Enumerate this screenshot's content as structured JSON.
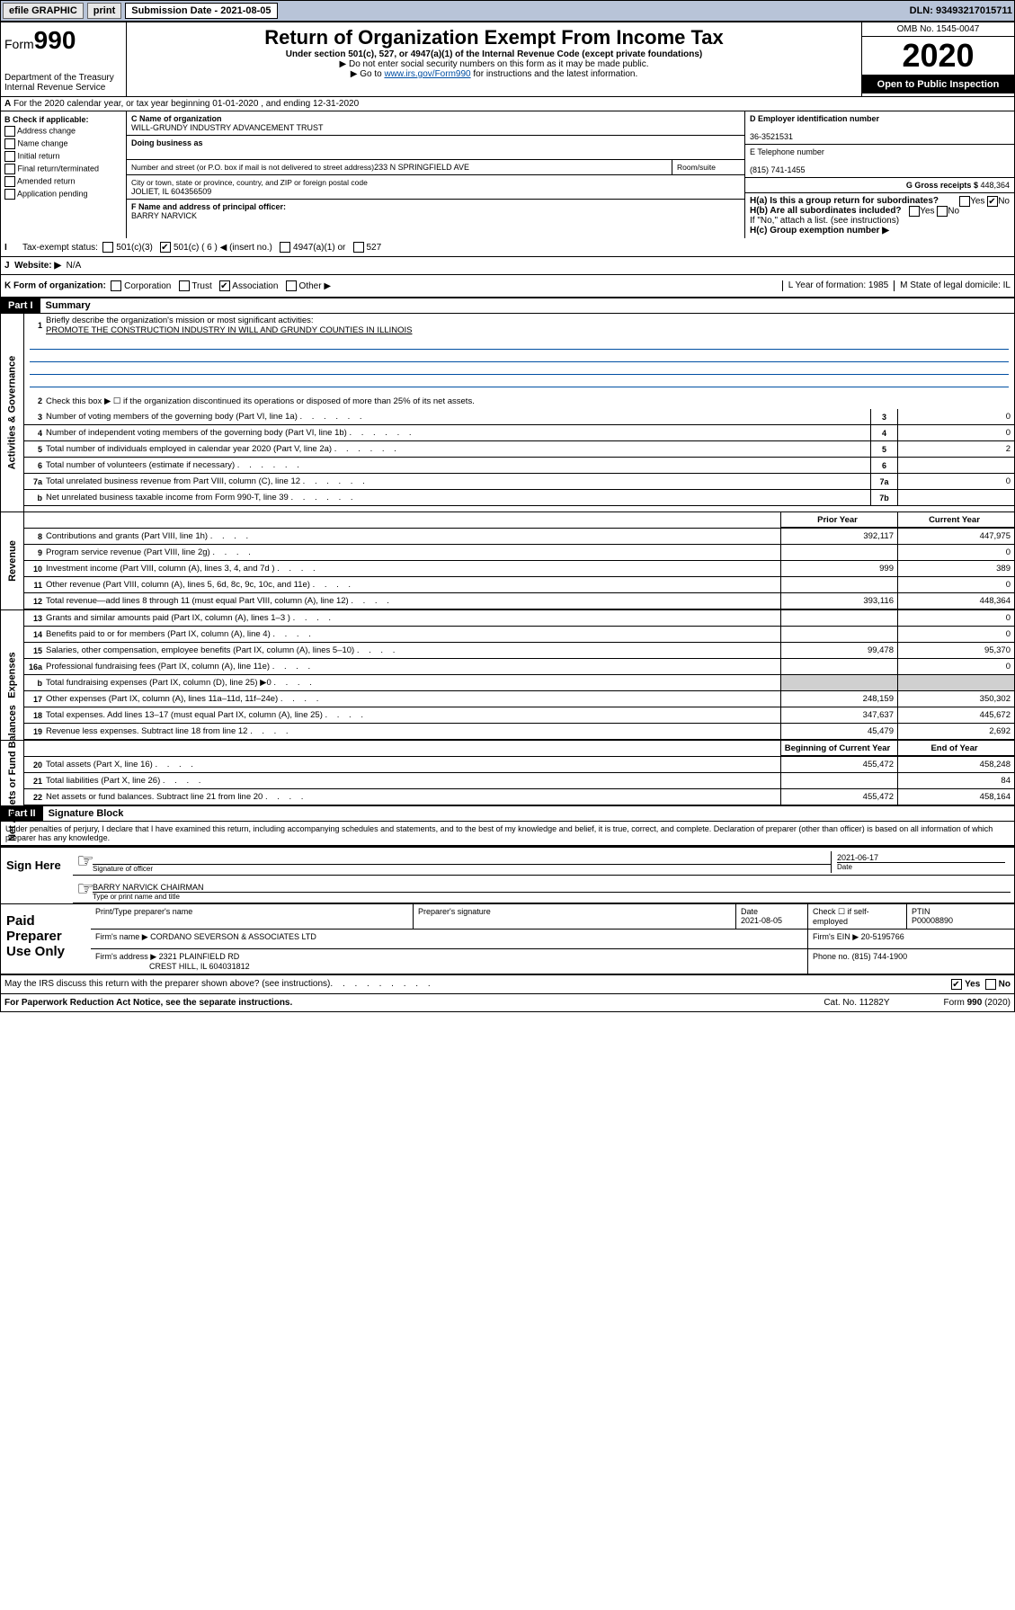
{
  "topbar": {
    "efile": "efile GRAPHIC",
    "print": "print",
    "subdate_label": "Submission Date - 2021-08-05",
    "dln": "DLN: 93493217015711"
  },
  "header": {
    "form_prefix": "Form",
    "form_num": "990",
    "dept": "Department of the Treasury",
    "irs": "Internal Revenue Service",
    "title": "Return of Organization Exempt From Income Tax",
    "sub1": "Under section 501(c), 527, or 4947(a)(1) of the Internal Revenue Code (except private foundations)",
    "sub2": "▶ Do not enter social security numbers on this form as it may be made public.",
    "sub3_pre": "▶ Go to ",
    "sub3_link": "www.irs.gov/Form990",
    "sub3_post": " for instructions and the latest information.",
    "omb": "OMB No. 1545-0047",
    "year": "2020",
    "badge": "Open to Public Inspection"
  },
  "sectionA": "For the 2020 calendar year, or tax year beginning 01-01-2020    , and ending 12-31-2020",
  "boxB": {
    "title": "B Check if applicable:",
    "items": [
      "Address change",
      "Name change",
      "Initial return",
      "Final return/terminated",
      "Amended return",
      "Application pending"
    ]
  },
  "boxC": {
    "name_lbl": "C Name of organization",
    "name": "WILL-GRUNDY INDUSTRY ADVANCEMENT TRUST",
    "dba_lbl": "Doing business as",
    "addr_lbl": "Number and street (or P.O. box if mail is not delivered to street address)",
    "room_lbl": "Room/suite",
    "addr": "233 N SPRINGFIELD AVE",
    "city_lbl": "City or town, state or province, country, and ZIP or foreign postal code",
    "city": "JOLIET, IL  604356509",
    "officer_lbl": "F  Name and address of principal officer:",
    "officer": "BARRY NARVICK"
  },
  "boxD": {
    "lbl": "D Employer identification number",
    "val": "36-3521531"
  },
  "boxE": {
    "lbl": "E Telephone number",
    "val": "(815) 741-1455"
  },
  "boxG": {
    "lbl": "G Gross receipts $ ",
    "val": "448,364"
  },
  "boxH": {
    "a": "H(a)  Is this a group return for subordinates?",
    "b": "H(b)  Are all subordinates included?",
    "note": "If \"No,\" attach a list. (see instructions)",
    "c": "H(c)  Group exemption number ▶",
    "yes": "Yes",
    "no": "No"
  },
  "boxI": {
    "lbl": "Tax-exempt status:",
    "opts": [
      "501(c)(3)",
      "501(c) ( 6 ) ◀ (insert no.)",
      "4947(a)(1) or",
      "527"
    ]
  },
  "boxJ": {
    "lbl": "Website: ▶",
    "val": "N/A"
  },
  "boxK": {
    "lbl": "K Form of organization:",
    "opts": [
      "Corporation",
      "Trust",
      "Association",
      "Other ▶"
    ],
    "l": "L Year of formation: 1985",
    "m": "M State of legal domicile: IL"
  },
  "part1": {
    "hdr": "Part I",
    "title": "Summary",
    "q1_lbl": "Briefly describe the organization's mission or most significant activities:",
    "q1_val": "PROMOTE THE CONSTRUCTION INDUSTRY IN WILL AND GRUNDY COUNTIES IN ILLINOIS",
    "q2": "Check this box ▶ ☐  if the organization discontinued its operations or disposed of more than 25% of its net assets.",
    "sidebar_gov": "Activities & Governance",
    "sidebar_rev": "Revenue",
    "sidebar_exp": "Expenses",
    "sidebar_net": "Net Assets or Fund Balances",
    "col_prior": "Prior Year",
    "col_curr": "Current Year",
    "col_beg": "Beginning of Current Year",
    "col_end": "End of Year",
    "rows_gov": [
      {
        "n": "3",
        "t": "Number of voting members of the governing body (Part VI, line 1a)",
        "rn": "3",
        "v": "0"
      },
      {
        "n": "4",
        "t": "Number of independent voting members of the governing body (Part VI, line 1b)",
        "rn": "4",
        "v": "0"
      },
      {
        "n": "5",
        "t": "Total number of individuals employed in calendar year 2020 (Part V, line 2a)",
        "rn": "5",
        "v": "2"
      },
      {
        "n": "6",
        "t": "Total number of volunteers (estimate if necessary)",
        "rn": "6",
        "v": ""
      },
      {
        "n": "7a",
        "t": "Total unrelated business revenue from Part VIII, column (C), line 12",
        "rn": "7a",
        "v": "0"
      },
      {
        "n": "b",
        "t": "Net unrelated business taxable income from Form 990-T, line 39",
        "rn": "7b",
        "v": ""
      }
    ],
    "rows_rev": [
      {
        "n": "8",
        "t": "Contributions and grants (Part VIII, line 1h)",
        "p": "392,117",
        "c": "447,975"
      },
      {
        "n": "9",
        "t": "Program service revenue (Part VIII, line 2g)",
        "p": "",
        "c": "0"
      },
      {
        "n": "10",
        "t": "Investment income (Part VIII, column (A), lines 3, 4, and 7d )",
        "p": "999",
        "c": "389"
      },
      {
        "n": "11",
        "t": "Other revenue (Part VIII, column (A), lines 5, 6d, 8c, 9c, 10c, and 11e)",
        "p": "",
        "c": "0"
      },
      {
        "n": "12",
        "t": "Total revenue—add lines 8 through 11 (must equal Part VIII, column (A), line 12)",
        "p": "393,116",
        "c": "448,364"
      }
    ],
    "rows_exp": [
      {
        "n": "13",
        "t": "Grants and similar amounts paid (Part IX, column (A), lines 1–3 )",
        "p": "",
        "c": "0"
      },
      {
        "n": "14",
        "t": "Benefits paid to or for members (Part IX, column (A), line 4)",
        "p": "",
        "c": "0"
      },
      {
        "n": "15",
        "t": "Salaries, other compensation, employee benefits (Part IX, column (A), lines 5–10)",
        "p": "99,478",
        "c": "95,370"
      },
      {
        "n": "16a",
        "t": "Professional fundraising fees (Part IX, column (A), line 11e)",
        "p": "",
        "c": "0"
      },
      {
        "n": "b",
        "t": "Total fundraising expenses (Part IX, column (D), line 25) ▶0",
        "p": "gray",
        "c": "gray"
      },
      {
        "n": "17",
        "t": "Other expenses (Part IX, column (A), lines 11a–11d, 11f–24e)",
        "p": "248,159",
        "c": "350,302"
      },
      {
        "n": "18",
        "t": "Total expenses. Add lines 13–17 (must equal Part IX, column (A), line 25)",
        "p": "347,637",
        "c": "445,672"
      },
      {
        "n": "19",
        "t": "Revenue less expenses. Subtract line 18 from line 12",
        "p": "45,479",
        "c": "2,692"
      }
    ],
    "rows_net": [
      {
        "n": "20",
        "t": "Total assets (Part X, line 16)",
        "p": "455,472",
        "c": "458,248"
      },
      {
        "n": "21",
        "t": "Total liabilities (Part X, line 26)",
        "p": "",
        "c": "84"
      },
      {
        "n": "22",
        "t": "Net assets or fund balances. Subtract line 21 from line 20",
        "p": "455,472",
        "c": "458,164"
      }
    ]
  },
  "part2": {
    "hdr": "Part II",
    "title": "Signature Block",
    "declar": "Under penalties of perjury, I declare that I have examined this return, including accompanying schedules and statements, and to the best of my knowledge and belief, it is true, correct, and complete. Declaration of preparer (other than officer) is based on all information of which preparer has any knowledge."
  },
  "sign": {
    "label": "Sign Here",
    "sig_lbl": "Signature of officer",
    "date": "2021-06-17",
    "date_lbl": "Date",
    "name": "BARRY NARVICK  CHAIRMAN",
    "name_lbl": "Type or print name and title"
  },
  "paid": {
    "label": "Paid Preparer Use Only",
    "h1": "Print/Type preparer's name",
    "h2": "Preparer's signature",
    "h3": "Date",
    "date": "2021-08-05",
    "check_lbl": "Check ☐ if self-employed",
    "ptin_lbl": "PTIN",
    "ptin": "P00008890",
    "firm_lbl": "Firm's name    ▶",
    "firm": "CORDANO SEVERSON & ASSOCIATES LTD",
    "ein_lbl": "Firm's EIN ▶",
    "ein": "20-5195766",
    "addr_lbl": "Firm's address ▶",
    "addr1": "2321 PLAINFIELD RD",
    "addr2": "CREST HILL, IL  604031812",
    "phone_lbl": "Phone no.",
    "phone": "(815) 744-1900"
  },
  "footer": {
    "discuss": "May the IRS discuss this return with the preparer shown above? (see instructions)",
    "yes": "Yes",
    "no": "No",
    "paperwork": "For Paperwork Reduction Act Notice, see the separate instructions.",
    "cat": "Cat. No. 11282Y",
    "form": "Form 990 (2020)"
  }
}
